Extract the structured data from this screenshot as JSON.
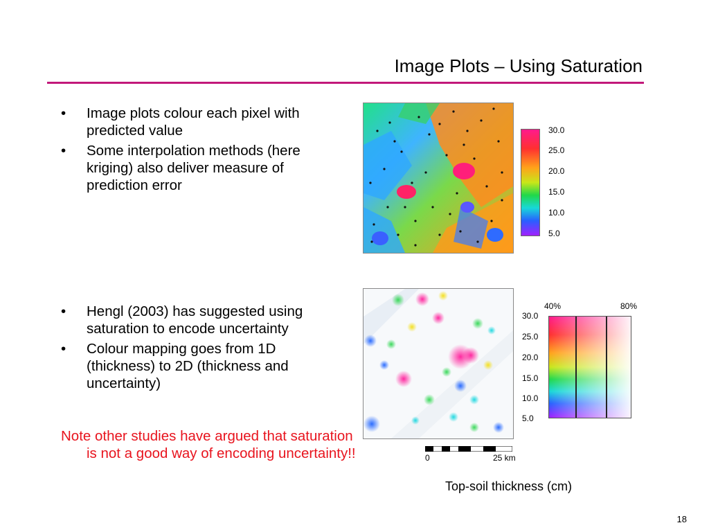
{
  "slide": {
    "title": "Image Plots – Using Saturation",
    "accent_color": "#c2187a",
    "page_number": "18"
  },
  "bullets_top": [
    {
      "marker": "•",
      "text": "Image plots colour each pixel with predicted value"
    },
    {
      "marker": "•",
      "text": "Some interpolation methods (here kriging) also deliver measure of prediction error"
    }
  ],
  "bullets_bottom": [
    {
      "marker": "•",
      "text": "Hengl (2003) has suggested using saturation to encode uncertainty"
    },
    {
      "marker": "•",
      "text": "Colour mapping goes from 1D (thickness) to 2D (thickness and uncertainty)"
    }
  ],
  "note": {
    "text": "Note other studies have argued that saturation is not a good way of encoding uncertainty!!",
    "color": "#e8141e"
  },
  "legend_top": {
    "ticks": [
      "30.0",
      "25.0",
      "20.0",
      "15.0",
      "10.0",
      "5.0"
    ]
  },
  "legend_bottom": {
    "top_labels": [
      "40%",
      "80%"
    ],
    "ticks": [
      "30.0",
      "25.0",
      "20.0",
      "15.0",
      "10.0",
      "5.0"
    ]
  },
  "scale_bar": {
    "start_label": "0",
    "end_label": "25 km"
  },
  "caption": "Top-soil thickness (cm)"
}
